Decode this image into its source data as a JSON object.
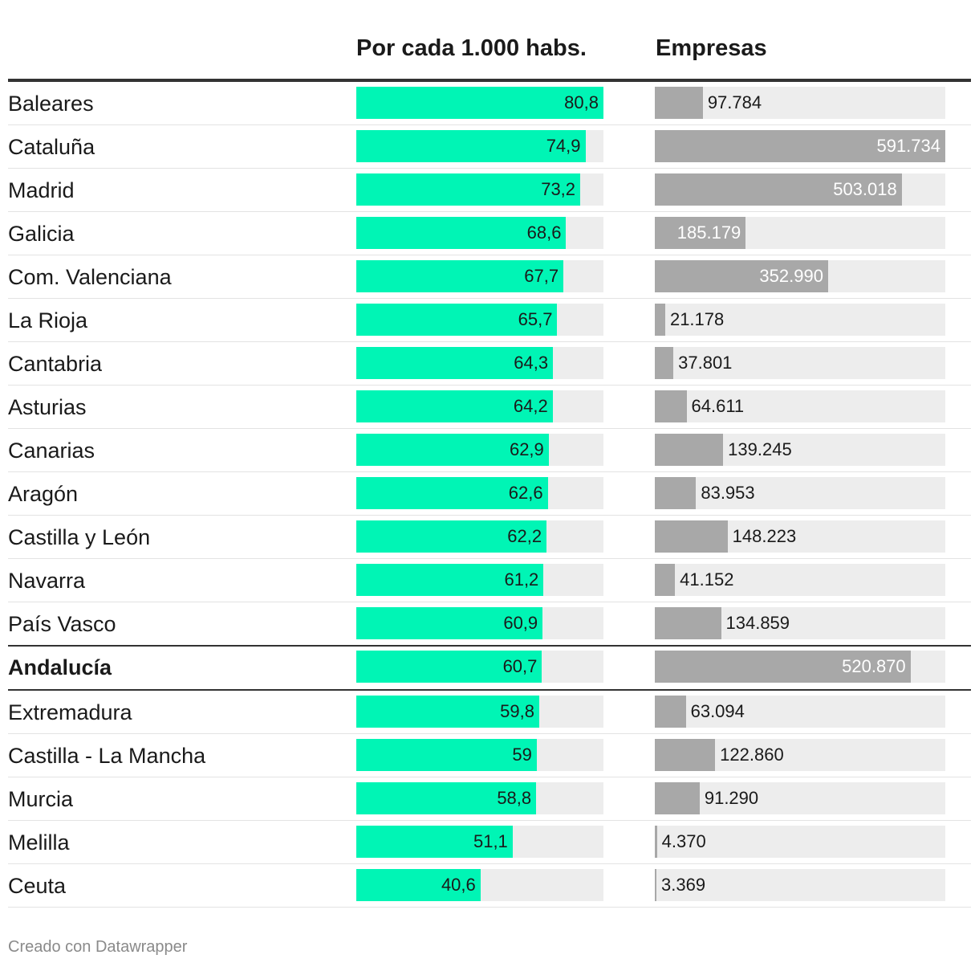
{
  "headers": {
    "ratio": "Por cada 1.000 habs.",
    "companies": "Empresas"
  },
  "footer": "Creado con Datawrapper",
  "colors": {
    "ratio_bar": "#00f5b5",
    "companies_bar": "#a8a8a8",
    "track": "#ededed"
  },
  "chart_data": {
    "type": "bar",
    "layout": "horizontal bar table",
    "highlight": "Andalucía",
    "categories": [
      "Baleares",
      "Cataluña",
      "Madrid",
      "Galicia",
      "Com. Valenciana",
      "La Rioja",
      "Cantabria",
      "Asturias",
      "Canarias",
      "Aragón",
      "Castilla y León",
      "Navarra",
      "País Vasco",
      "Andalucía",
      "Extremadura",
      "Castilla - La Mancha",
      "Murcia",
      "Melilla",
      "Ceuta"
    ],
    "series": [
      {
        "name": "Por cada 1.000 habs.",
        "values": [
          80.8,
          74.9,
          73.2,
          68.6,
          67.7,
          65.7,
          64.3,
          64.2,
          62.9,
          62.6,
          62.2,
          61.2,
          60.9,
          60.7,
          59.8,
          59,
          58.8,
          51.1,
          40.6
        ],
        "labels": [
          "80,8",
          "74,9",
          "73,2",
          "68,6",
          "67,7",
          "65,7",
          "64,3",
          "64,2",
          "62,9",
          "62,6",
          "62,2",
          "61,2",
          "60,9",
          "60,7",
          "59,8",
          "59",
          "58,8",
          "51,1",
          "40,6"
        ],
        "max": 80.8
      },
      {
        "name": "Empresas",
        "values": [
          97784,
          591734,
          503018,
          185179,
          352990,
          21178,
          37801,
          64611,
          139245,
          83953,
          148223,
          41152,
          134859,
          520870,
          63094,
          122860,
          91290,
          4370,
          3369
        ],
        "labels": [
          "97.784",
          "591.734",
          "503.018",
          "185.179",
          "352.990",
          "21.178",
          "37.801",
          "64.611",
          "139.245",
          "83.953",
          "148.223",
          "41.152",
          "134.859",
          "520.870",
          "63.094",
          "122.860",
          "91.290",
          "4.370",
          "3.369"
        ],
        "max": 591734
      }
    ]
  }
}
